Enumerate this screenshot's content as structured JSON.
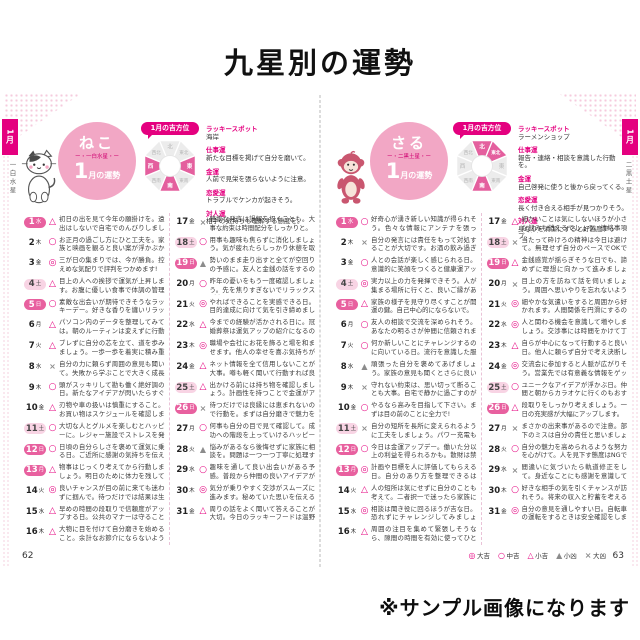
{
  "title": "九星別の運勢",
  "sample_note": "※サンプル画像になります",
  "houi_label": "1月の吉方位",
  "colors": {
    "accent": "#e4007f",
    "circle_pink": "#f2a7c5",
    "sunday_pill": "#e8609f",
    "saturday_pill": "#f8d4e4",
    "symbol_gray": "#8c8c8c"
  },
  "legend": [
    {
      "sym": "◎",
      "label": "大吉",
      "tone": "pink"
    },
    {
      "sym": "○",
      "label": "中吉",
      "tone": "pink"
    },
    {
      "sym": "△",
      "label": "小吉",
      "tone": "pink"
    },
    {
      "sym": "▲",
      "label": "小凶",
      "tone": "gray"
    },
    {
      "sym": "×",
      "label": "大凶",
      "tone": "gray"
    }
  ],
  "pages": {
    "left": {
      "page_number": "62",
      "tab_month": "1月",
      "tab_star": "一白水星",
      "animal": "ねこ",
      "star_deco": "ー・一白水星・ー",
      "month_num": "1",
      "month_suffix": "月の運勢",
      "directions": [
        {
          "name": "北",
          "lucky": false
        },
        {
          "name": "東北",
          "lucky": false
        },
        {
          "name": "東",
          "lucky": true
        },
        {
          "name": "東南",
          "lucky": false
        },
        {
          "name": "南",
          "lucky": true
        },
        {
          "name": "西南",
          "lucky": false
        },
        {
          "name": "西",
          "lucky": true
        },
        {
          "name": "西北",
          "lucky": false
        }
      ],
      "info": [
        {
          "head": "ラッキースポット",
          "body": "海岸"
        },
        {
          "head": "仕事運",
          "body": "新たな目標を掲げて自分を磨いて。"
        },
        {
          "head": "金運",
          "body": "人前で見栄を張らないように注意。"
        },
        {
          "head": "恋愛運",
          "body": "トラブルでケンカが起きそう。"
        },
        {
          "head": "対人運",
          "body": "相手の気持ちも理解する態度を。"
        }
      ],
      "days": [
        {
          "d": 1,
          "w": "水",
          "t": "sun",
          "s": "△",
          "text": "初日の出を見て今年の願掛けを。遠出はしないで自宅でのんびりしましょう。"
        },
        {
          "d": 2,
          "w": "木",
          "t": "wd",
          "s": "○",
          "text": "お正月の過ごし方にひと工夫を。家族と映画を観ると良い案が浮かぶかも。"
        },
        {
          "d": 3,
          "w": "金",
          "t": "wd",
          "s": "◎",
          "text": "三が日の集まりでは、今が勝負。控えめな気配りで評判をつかめます!"
        },
        {
          "d": 4,
          "w": "土",
          "t": "sat",
          "s": "△",
          "text": "目上の人への挨拶で運気が上昇します。お腹に優しい食事で体調の管理を。"
        },
        {
          "d": 5,
          "w": "日",
          "t": "sun",
          "s": "○",
          "text": "素敵な出会いが期待できそうなラッキーデー。好きな香りを纏いリラックスして。"
        },
        {
          "d": 6,
          "w": "月",
          "t": "wd",
          "s": "△",
          "text": "パソコン内のデータを整理してみては。朝のルーティンは変えずに行動を。"
        },
        {
          "d": 7,
          "w": "火",
          "t": "wd",
          "s": "△",
          "text": "ブレずに自分の芯を立て、道を歩みましょう。一歩一歩を着実に積み重ねる日。"
        },
        {
          "d": 8,
          "w": "水",
          "t": "wd",
          "s": "×",
          "text": "自分の力に頼らず周囲の意見も聞いて。失敗から学ぶことで大きく成長します。"
        },
        {
          "d": 9,
          "w": "木",
          "t": "wd",
          "s": "○",
          "text": "頭がスッキリして勘も働く絶好調の日。新たなアイデアが閃いたらすぐメモを。"
        },
        {
          "d": 10,
          "w": "金",
          "t": "wd",
          "s": "△",
          "text": "刃物や車の扱いは慎重にすること。お買い物はスケジュールを確認しましょう。"
        },
        {
          "d": 11,
          "w": "土",
          "t": "sat",
          "s": "○",
          "text": "大切な人とグルメを楽しむとハッピーに。レジャー施設でストレスを発散して。"
        },
        {
          "d": 12,
          "w": "日",
          "t": "sun",
          "s": "○",
          "text": "日頃の自分らしさを褒めて運気に乗る日。ご近所に感謝の気持ちを伝えましょう♪"
        },
        {
          "d": 13,
          "w": "月",
          "t": "sun",
          "s": "△",
          "text": "物事はじっくり考えてから行動しましょう。明日のために体力を残しておいて。"
        },
        {
          "d": 14,
          "w": "火",
          "t": "wd",
          "s": "◎",
          "text": "良いチャンスが目の前に来ても迷わずに掴んで。待つだけでは結果は生まれません。"
        },
        {
          "d": 15,
          "w": "水",
          "t": "wd",
          "s": "△",
          "text": "早めの時間の段取りで信頼度がアップする日。公共のマナーは守ることが大切。"
        },
        {
          "d": 16,
          "w": "木",
          "t": "wd",
          "s": "△",
          "text": "大物に目を付けて自分磨きを始めること。余計なお節介にならないように謙虚を。"
        },
        {
          "d": 17,
          "w": "金",
          "t": "wd",
          "s": "×",
          "text": "軽率な発言は誤解を招くことも。大事な約束は時間配分をしっかりと。"
        },
        {
          "d": 18,
          "w": "土",
          "t": "sat",
          "s": "○",
          "text": "用事も趣味も焦らずに消化しましょう。気が疲れたらしっかり休憩を取って。"
        },
        {
          "d": 19,
          "w": "日",
          "t": "sun",
          "s": "▲",
          "text": "勢いのまま走り出すと全てが空回りの予感に。友人と金銭の話をするのは避けて。"
        },
        {
          "d": 20,
          "w": "月",
          "t": "wd",
          "s": "○",
          "text": "昨年の憂いをもう一度確認しましょう。先を焦りすぎないでリラックスが吉。"
        },
        {
          "d": 21,
          "w": "火",
          "t": "wd",
          "s": "◎",
          "text": "やればできることを実感できる日。目的達成に向けて気を引き締めましょう。"
        },
        {
          "d": 22,
          "w": "水",
          "t": "wd",
          "s": "△",
          "text": "今までの経験が活かされる日に。冠婚葬祭は運気アップの紹介になるので丁寧に。"
        },
        {
          "d": 23,
          "w": "木",
          "t": "wd",
          "s": "◎",
          "text": "職場や会社にお花を飾ると場を和ませます。他人の幸せを喜ぶ気持ちが大事。"
        },
        {
          "d": 24,
          "w": "金",
          "t": "wd",
          "s": "△",
          "text": "ネット情報を全て信用しないことが大事。噂も軽く聞いて行動すれば良い結果に。"
        },
        {
          "d": 25,
          "w": "土",
          "t": "sat",
          "s": "△",
          "text": "出かける前には持ち物を確認しましょう。計画性を持つことで金運がアップ!"
        },
        {
          "d": 26,
          "w": "日",
          "t": "sun",
          "s": "×",
          "text": "待つだけでは良縁には恵まれないので行動を。まずは自分磨きで魅力を高めて。"
        },
        {
          "d": 27,
          "w": "月",
          "t": "wd",
          "s": "○",
          "text": "何事も自分の目で見て確認して。成功への階段を上っていけるハッピーデー。"
        },
        {
          "d": 28,
          "w": "火",
          "t": "wd",
          "s": "▲",
          "text": "悩みがあるなら後悔せずに家族に相談を。問題は一つ一つ丁寧に処理すること。"
        },
        {
          "d": 29,
          "w": "水",
          "t": "wd",
          "s": "○",
          "text": "趣味を通して良い出会いがある予感。普段から仲間の良いアイデアが集まる日。"
        },
        {
          "d": 30,
          "w": "木",
          "t": "wd",
          "s": "◎",
          "text": "気分が乗りやすく交渉がスムーズに進みます。秘めていた思いを伝えるチャンス。"
        },
        {
          "d": 31,
          "w": "金",
          "t": "wd",
          "s": "△",
          "text": "周りの話をよく聞いて答えることが大切。今日のラッキーフードは温野菜。"
        }
      ]
    },
    "right": {
      "page_number": "63",
      "tab_month": "1月",
      "tab_star": "二黒土星",
      "animal": "さる",
      "star_deco": "ー・二黒土星・ー",
      "month_num": "1",
      "month_suffix": "月の運勢",
      "directions": [
        {
          "name": "北",
          "lucky": true
        },
        {
          "name": "東北",
          "lucky": true
        },
        {
          "name": "東",
          "lucky": false
        },
        {
          "name": "東南",
          "lucky": false
        },
        {
          "name": "南",
          "lucky": true
        },
        {
          "name": "西南",
          "lucky": false
        },
        {
          "name": "西",
          "lucky": false
        },
        {
          "name": "西北",
          "lucky": false
        }
      ],
      "info": [
        {
          "head": "ラッキースポット",
          "body": "ラーメンショップ"
        },
        {
          "head": "仕事運",
          "body": "報告・連絡・相談を意識した行動を。"
        },
        {
          "head": "金運",
          "body": "自己啓発に使うと後から戻ってくる。"
        },
        {
          "head": "恋愛運",
          "body": "長く付き合える相手が見つかりそう。"
        },
        {
          "head": "対人運",
          "body": "身なりを清潔にすると好感度アップ。"
        }
      ],
      "days": [
        {
          "d": 1,
          "w": "水",
          "t": "sun",
          "s": "○",
          "text": "好奇心が湧き新しい知識が得られそう。色々な情報にアンテナを張って。"
        },
        {
          "d": 2,
          "w": "木",
          "t": "wd",
          "s": "×",
          "text": "自分の発言には責任をもって対処することが大切です。お酒の飲み過ぎに注意。"
        },
        {
          "d": 3,
          "w": "金",
          "t": "wd",
          "s": "○",
          "text": "人との会話が楽しく感じられる日。意識的に笑顔をつくると健康運アップに!"
        },
        {
          "d": 4,
          "w": "土",
          "t": "sat",
          "s": "◎",
          "text": "実力以上の力を発揮できそう。人が集まる場所に行くと、良いご縁があります。"
        },
        {
          "d": 5,
          "w": "日",
          "t": "sun",
          "s": "△",
          "text": "家族の様子を見守り尽くすことが開運の鍵。自己中心的にならないで。"
        },
        {
          "d": 6,
          "w": "月",
          "t": "wd",
          "s": "○",
          "text": "友人の相談で交流を深められそう。あなたの明るさが仲間に信頼されます。"
        },
        {
          "d": 7,
          "w": "火",
          "t": "wd",
          "s": "○",
          "text": "何か新しいことにチャレンジするのに向いている日。流行を意識した服装を。"
        },
        {
          "d": 8,
          "w": "水",
          "t": "wd",
          "s": "▲",
          "text": "頑張った自分を褒めてあげましょう。家族の意見も聞くとさらに良いかも。"
        },
        {
          "d": 9,
          "w": "木",
          "t": "wd",
          "s": "×",
          "text": "守れない約束は、思い切って断ることも大事。自宅で静かに過ごすのが無難に。"
        },
        {
          "d": 10,
          "w": "金",
          "t": "wd",
          "s": "○",
          "text": "やるなら高みを目指して下さい。まずは目の前のことに全力で!"
        },
        {
          "d": 11,
          "w": "土",
          "t": "sat",
          "s": "×",
          "text": "自分の短所を長所に変えられるように工夫をしましょう。パワー充電も大事。"
        },
        {
          "d": 12,
          "w": "日",
          "t": "sun",
          "s": "○",
          "text": "今日は金運アップデー。働いた分以上の利益を得られるかも。散財は禁物です。"
        },
        {
          "d": 13,
          "w": "月",
          "t": "sun",
          "s": "◎",
          "text": "計画や目標を人に評価してもらえる日。自分のあり方を整理できるはず。"
        },
        {
          "d": 14,
          "w": "火",
          "t": "wd",
          "s": "△",
          "text": "人の短所は気にせずに自分のことも考えて。二者択一で迷ったら家族に相談を。"
        },
        {
          "d": 15,
          "w": "水",
          "t": "wd",
          "s": "◎",
          "text": "相談は聞き役に回るほうが吉な日。恐れずにチャレンジしてみましょう。"
        },
        {
          "d": 16,
          "w": "木",
          "t": "wd",
          "s": "△",
          "text": "周囲の注目を集めて緊張しそうなら、隙間の時間を有効に使ってひと息を。"
        },
        {
          "d": 17,
          "w": "金",
          "t": "wd",
          "s": "△",
          "text": "細かいことは気にしないほうが小さな悩みも消えるでしょう。連絡事項に注意を。"
        },
        {
          "d": 18,
          "w": "土",
          "t": "sat",
          "s": "×",
          "text": "当たって砕けろの精神は今日は避けて。無理せず自分のペースでOKです。"
        },
        {
          "d": 19,
          "w": "日",
          "t": "sun",
          "s": "△",
          "text": "金銭感覚が揺らぎそうな日でも、諦めずに理想に向かって進みましょう。"
        },
        {
          "d": 20,
          "w": "月",
          "t": "wd",
          "s": "×",
          "text": "目上の方を訪ねて話を伺いましょう。周囲へ思いやりを忘れないように。"
        },
        {
          "d": 21,
          "w": "火",
          "t": "wd",
          "s": "◎",
          "text": "細やかな気遣いをすると周囲から好かれます。人間関係を円滑にするのは笑顔。"
        },
        {
          "d": 22,
          "w": "水",
          "t": "wd",
          "s": "◎",
          "text": "人と関わる機会を意識して増やしましょう。交渉事には時間をかけて丁寧に。"
        },
        {
          "d": 23,
          "w": "木",
          "t": "wd",
          "s": "△",
          "text": "自らが中心になって行動すると良い日。他人に頼らず自分で考え決断しましょう。"
        },
        {
          "d": 24,
          "w": "金",
          "t": "wd",
          "s": "◎",
          "text": "交流会に参加すると人脈が広がりそう。営業先では有意義な情報をゲット!"
        },
        {
          "d": 25,
          "w": "土",
          "t": "sat",
          "s": "○",
          "text": "ユニークなアイデアが浮かぶ日。仲間と朝からカラオケに行くのもおすすめ。"
        },
        {
          "d": 26,
          "w": "日",
          "t": "sun",
          "s": "△",
          "text": "段取りをしっかり考えましょう。一日の充実感が大幅にアップします。"
        },
        {
          "d": 27,
          "w": "月",
          "t": "wd",
          "s": "×",
          "text": "まさかの出来事があるので注意。部下のミスは自分の責任と思いましょう。"
        },
        {
          "d": 28,
          "w": "火",
          "t": "wd",
          "s": "○",
          "text": "自分の魅力を高められるような努力を心がけて。人を見下す態度はNGです。"
        },
        {
          "d": 29,
          "w": "水",
          "t": "wd",
          "s": "×",
          "text": "間違いに気づいたら軌道修正をして。身近なことにも感謝を意識してみて。"
        },
        {
          "d": 30,
          "w": "木",
          "t": "wd",
          "s": "○",
          "text": "好きな相手の気を引くチャンスが訪れそう。将来の収入と貯蓄を考えると吉です。"
        },
        {
          "d": 31,
          "w": "金",
          "t": "wd",
          "s": "◎",
          "text": "自分の意見を通しやすい日。自転車の運転をするときは安全確認をしましょう。"
        }
      ]
    }
  }
}
